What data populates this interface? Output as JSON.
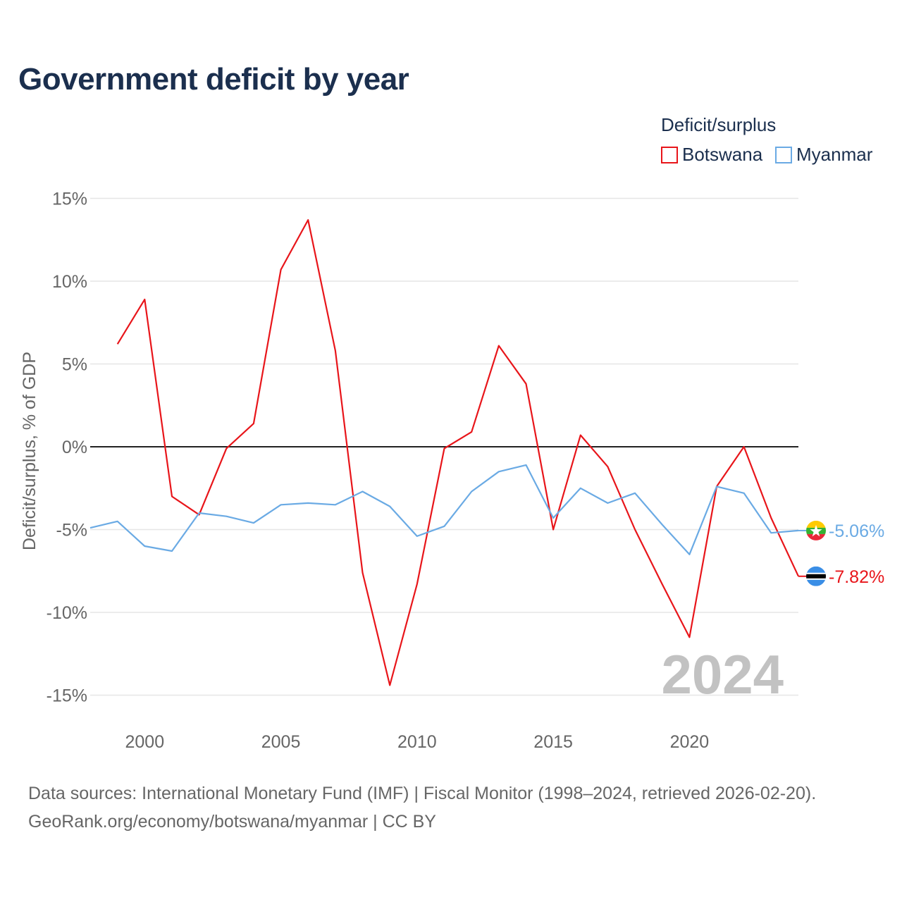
{
  "title": "Government deficit by year",
  "legend": {
    "title": "Deficit/surplus",
    "items": [
      {
        "label": "Botswana",
        "color": "#e8151a"
      },
      {
        "label": "Myanmar",
        "color": "#6aaae4"
      }
    ]
  },
  "footer": {
    "line1": "Data sources: International Monetary Fund (IMF) | Fiscal Monitor (1998–2024, retrieved 2026-02-20).",
    "line2": "GeoRank.org/economy/botswana/myanmar | CC BY"
  },
  "chart_data": {
    "type": "line",
    "title": "Government deficit by year",
    "ylabel": "Deficit/surplus, % of GDP",
    "xlabel": "",
    "xlim": [
      1998,
      2024
    ],
    "ylim": [
      -17,
      15
    ],
    "yticks": [
      15,
      10,
      5,
      0,
      -5,
      -10,
      -15
    ],
    "ytick_labels": [
      "15%",
      "10%",
      "5%",
      "0%",
      "-5%",
      "-10%",
      "-15%"
    ],
    "xticks": [
      2000,
      2005,
      2010,
      2015,
      2020
    ],
    "xtick_labels": [
      "2000",
      "2005",
      "2010",
      "2015",
      "2020"
    ],
    "watermark_year": "2024",
    "zero_line": true,
    "series": [
      {
        "name": "Botswana",
        "color": "#e8151a",
        "end_label": "-7.82%",
        "flag": "botswana-flag",
        "points": [
          [
            1999,
            6.2
          ],
          [
            2000,
            8.9
          ],
          [
            2001,
            -3.0
          ],
          [
            2002,
            -4.1
          ],
          [
            2003,
            -0.1
          ],
          [
            2004,
            1.4
          ],
          [
            2005,
            10.7
          ],
          [
            2006,
            13.7
          ],
          [
            2007,
            5.8
          ],
          [
            2008,
            -7.6
          ],
          [
            2009,
            -14.4
          ],
          [
            2010,
            -8.3
          ],
          [
            2011,
            -0.1
          ],
          [
            2012,
            0.9
          ],
          [
            2013,
            6.1
          ],
          [
            2014,
            3.8
          ],
          [
            2015,
            -5.0
          ],
          [
            2016,
            0.7
          ],
          [
            2017,
            -1.2
          ],
          [
            2018,
            -5.0
          ],
          [
            2019,
            -8.3
          ],
          [
            2020,
            -11.5
          ],
          [
            2021,
            -2.4
          ],
          [
            2022,
            0.0
          ],
          [
            2023,
            -4.3
          ],
          [
            2024,
            -7.82
          ]
        ]
      },
      {
        "name": "Myanmar",
        "color": "#6aaae4",
        "end_label": "-5.06%",
        "flag": "myanmar-flag",
        "points": [
          [
            1998,
            -4.9
          ],
          [
            1999,
            -4.5
          ],
          [
            2000,
            -6.0
          ],
          [
            2001,
            -6.3
          ],
          [
            2002,
            -4.0
          ],
          [
            2003,
            -4.2
          ],
          [
            2004,
            -4.6
          ],
          [
            2005,
            -3.5
          ],
          [
            2006,
            -3.4
          ],
          [
            2007,
            -3.5
          ],
          [
            2008,
            -2.7
          ],
          [
            2009,
            -3.6
          ],
          [
            2010,
            -5.4
          ],
          [
            2011,
            -4.8
          ],
          [
            2012,
            -2.7
          ],
          [
            2013,
            -1.5
          ],
          [
            2014,
            -1.1
          ],
          [
            2015,
            -4.3
          ],
          [
            2016,
            -2.5
          ],
          [
            2017,
            -3.4
          ],
          [
            2018,
            -2.8
          ],
          [
            2019,
            -4.7
          ],
          [
            2020,
            -6.5
          ],
          [
            2021,
            -2.4
          ],
          [
            2022,
            -2.8
          ],
          [
            2023,
            -5.2
          ],
          [
            2024,
            -5.06
          ]
        ]
      }
    ]
  }
}
